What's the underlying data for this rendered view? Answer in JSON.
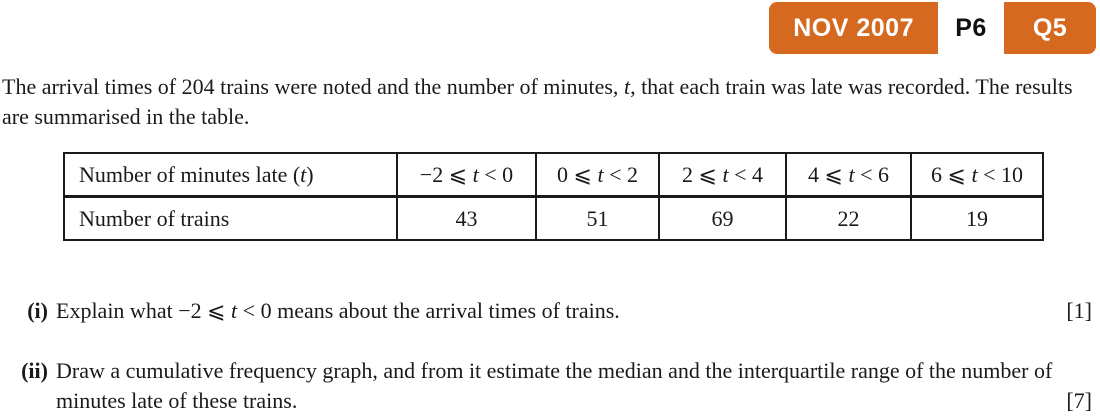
{
  "badge": {
    "exam_session": "NOV 2007",
    "paper": "P6",
    "question": "Q5"
  },
  "colors": {
    "badge_orange": "#d4691f",
    "text": "#1a1a1a"
  },
  "intro": {
    "part1": "The arrival times of 204 trains were noted and the number of minutes, ",
    "var": "t",
    "part2": ", that each train was late was recorded.  The results are summarised in the table."
  },
  "table": {
    "row1_header": {
      "pre": "Number of minutes late (",
      "var": "t",
      "post": ")"
    },
    "row2_header": "Number of trains",
    "bins": [
      {
        "pre": "−2 ⩽ ",
        "var": "t",
        "post": " < 0"
      },
      {
        "pre": "0 ⩽ ",
        "var": "t",
        "post": " < 2"
      },
      {
        "pre": "2 ⩽ ",
        "var": "t",
        "post": " < 4"
      },
      {
        "pre": "4 ⩽ ",
        "var": "t",
        "post": " < 6"
      },
      {
        "pre": "6 ⩽ ",
        "var": "t",
        "post": " < 10"
      }
    ],
    "counts": [
      "43",
      "51",
      "69",
      "22",
      "19"
    ],
    "total_trains": "204"
  },
  "questions": [
    {
      "label": "(i)",
      "text_pre": "Explain what −2 ⩽ ",
      "var": "t",
      "text_post": " < 0 means about the arrival times of trains.",
      "marks": "[1]"
    },
    {
      "label": "(ii)",
      "text_pre": "Draw a cumulative frequency graph, and from it estimate the median and the interquartile range of the number of minutes late of these trains.",
      "var": "",
      "text_post": "",
      "marks": "[7]"
    }
  ]
}
